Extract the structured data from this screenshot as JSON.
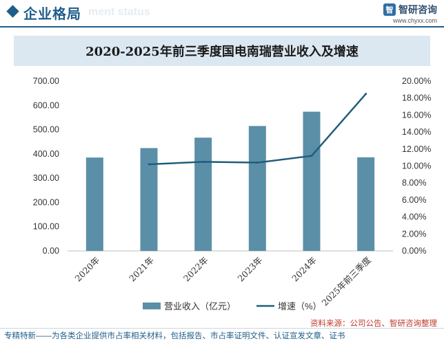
{
  "header": {
    "title": "企业格局",
    "watermark": "ment status",
    "brand_logo": "智",
    "brand_name": "智研咨询",
    "brand_url": "www.chyxx.com"
  },
  "chart_data": {
    "type": "bar",
    "title": "2020-2025年前三季度国电南瑞营业收入及增速",
    "categories": [
      "2020年",
      "2021年",
      "2022年",
      "2023年",
      "2024年",
      "2025年前三季度"
    ],
    "series": [
      {
        "name": "营业收入（亿元）",
        "type": "bar",
        "axis": "left",
        "color": "#5b8fa8",
        "values": [
          385.0,
          424.0,
          467.0,
          515.0,
          574.0,
          386.0
        ]
      },
      {
        "name": "增速（%）",
        "type": "line",
        "axis": "right",
        "color": "#1f5d7a",
        "values": [
          null,
          10.2,
          10.5,
          10.4,
          11.2,
          18.5
        ]
      }
    ],
    "y_left": {
      "min": 0,
      "max": 700,
      "ticks": [
        "0.00",
        "100.00",
        "200.00",
        "300.00",
        "400.00",
        "500.00",
        "600.00",
        "700.00"
      ]
    },
    "y_right": {
      "min": 0,
      "max": 20,
      "ticks": [
        "0.00%",
        "2.00%",
        "4.00%",
        "6.00%",
        "8.00%",
        "10.00%",
        "12.00%",
        "14.00%",
        "16.00%",
        "18.00%",
        "20.00%"
      ]
    },
    "legend_position": "bottom",
    "grid": false
  },
  "footer": {
    "source": "资料来源：公司公告、智研咨询整理",
    "slogan": "专精特新——为各类企业提供市占率相关材料，包括报告、市占率证明文件、认证宣发文章、证书"
  }
}
